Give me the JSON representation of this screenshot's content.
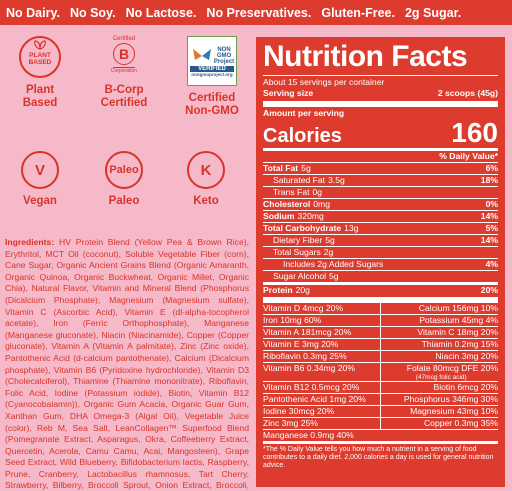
{
  "top_bar": [
    "No Dairy.",
    "No Soy.",
    "No Lactose.",
    "No Preservatives.",
    "Gluten-Free.",
    "2g Sugar."
  ],
  "badges": {
    "plant": {
      "icon_text": "PLANT BASED",
      "label": "Plant Based"
    },
    "bcorp": {
      "top_text": "Certified",
      "letter": "B",
      "bottom_text": "Corporation",
      "label": "B-Corp Certified"
    },
    "nongmo": {
      "text1": "NON",
      "text2": "GMO",
      "text3": "Project",
      "text4": "VERIFIED",
      "text5": "nongmoproject.org",
      "label": "Certified Non-GMO"
    },
    "vegan": {
      "symbol": "V",
      "label": "Vegan"
    },
    "paleo": {
      "symbol": "Paleo",
      "label": "Paleo"
    },
    "keto": {
      "symbol": "K",
      "label": "Keto"
    }
  },
  "ingredients": {
    "heading": "Ingredients:",
    "text": "HV Protein Blend (Yellow Pea & Brown Rice), Erythritol, MCT Oil (coconut), Soluble Vegetable Fiber (corn), Cane Sugar, Organic Ancient Grains Blend (Organic Amaranth, Organic Quinoa, Organic Buckwheat, Organic Millet, Organic Chia), Natural Flavor, Vitamin and Mineral Blend (Phosphorus (Dicalcium Phosphate), Magnesium (Magnesium sulfate), Vitamin C (Ascorbic Acid), Vitamin E (dl-alpha-tocopherol acetate), Iron (Ferric Orthophosphate), Manganese (Manganese gluconate), Niacin (Niacinamide), Copper (Copper gluconate), Vitamin A (Vitamin A palmitate), Zinc (Zinc oxide), Pantothenic Acid (d-calcium pantothenate), Calcium (Dicalcium phosphate), Vitamin B6 (Pyridoxine hydrochloride), Vitamin D3 (Cholecalciferol), Thiamine (Thiamine mononitrate), Riboflavin, Folic Acid, Iodine (Potassium iodide), Biotin, Vitamin B12 (Cyanocobalamin)), Organic Gum Acacia, Organic Guar Gum, Xanthan Gum, DHA Omega-3 (Algal Oil), Vegetable Juice (color), Reb M, Sea Salt, LeanCollagen™ Superfood Blend (Pomegranate Extract, Asparagus, Okra, Coffeeberry Extract, Quercetin, Acerola, Camu Camu, Acai, Mangosteen), Grape Seed Extract, Wild Blueberry, Bifidobacterium lactis, Raspberry, Prune, Cranberry, Lactobacillus rhamnosus, Tart Cherry, Strawberry, Bilberry, Broccoli Sprout, Onion Extract, Broccoli, Tomato, Carrot, Spinach, Kale, Grape, Blueberry Extract, Bilberry Extract, Brussel Sprouts, Raspberry Seeds."
  },
  "nutrition": {
    "title": "Nutrition Facts",
    "servings": "About 15 servings per container",
    "serving_size_label": "Serving size",
    "serving_size_value": "2 scoops (45g)",
    "amount_per_serving": "Amount per serving",
    "calories_label": "Calories",
    "calories_value": "160",
    "dv_header": "% Daily Value*",
    "rows": [
      {
        "label": "Total Fat",
        "amount": "5g",
        "dv": "6%"
      },
      {
        "label": "Saturated Fat",
        "amount": "3.5g",
        "dv": "18%"
      },
      {
        "label": "Trans Fat",
        "amount": "0g",
        "dv": ""
      },
      {
        "label": "Cholesterol",
        "amount": "0mg",
        "dv": "0%"
      },
      {
        "label": "Sodium",
        "amount": "320mg",
        "dv": "14%"
      },
      {
        "label": "Total Carbohydrate",
        "amount": "13g",
        "dv": "5%"
      },
      {
        "label": "Dietary Fiber",
        "amount": "5g",
        "dv": "14%"
      },
      {
        "label": "Total Sugars",
        "amount": "2g",
        "dv": ""
      },
      {
        "label": "Includes 2g Added Sugars",
        "amount": "",
        "dv": "4%"
      },
      {
        "label": "Sugar Alcohol",
        "amount": "5g",
        "dv": ""
      },
      {
        "label": "Protein",
        "amount": "20g",
        "dv": "20%"
      }
    ],
    "vitamins": [
      {
        "left": "Vitamin D 4mcg 20%",
        "right": "Calcium 156mg 10%"
      },
      {
        "left": "Iron 10mg 60%",
        "right": "Potassium 45mg 4%"
      },
      {
        "left": "Vitamin A 181mcg 20%",
        "right": "Vitamin C 18mg 20%"
      },
      {
        "left": "Vitamin E 3mg 20%",
        "right": "Thiamin 0.2mg 15%"
      },
      {
        "left": "Riboflavin 0.3mg 25%",
        "right": "Niacin 3mg 20%"
      },
      {
        "left": "Vitamin B6 0.34mg 20%",
        "right": "Folate 80mcg DFE 20%",
        "right_sub": "(47mcg folic acid)"
      },
      {
        "left": "Vitamin B12 0.5mcg 20%",
        "right": "Biotin 6mcg 20%"
      },
      {
        "left": "Pantothenic Acid 1mg 20%",
        "right": "Phosphorus 346mg 30%"
      },
      {
        "left": "Iodine 30mcg 20%",
        "right": "Magnesium 43mg 10%"
      },
      {
        "left": "Zinc 3mg 25%",
        "right": "Copper 0.3mg 35%"
      }
    ],
    "manganese": "Manganese 0.9mg 40%",
    "footnote": "*The % Daily Value tells you how much a nutrient in a serving of food contributes to a daily diet. 2,000 calories a day is used for general nutrition advice."
  }
}
